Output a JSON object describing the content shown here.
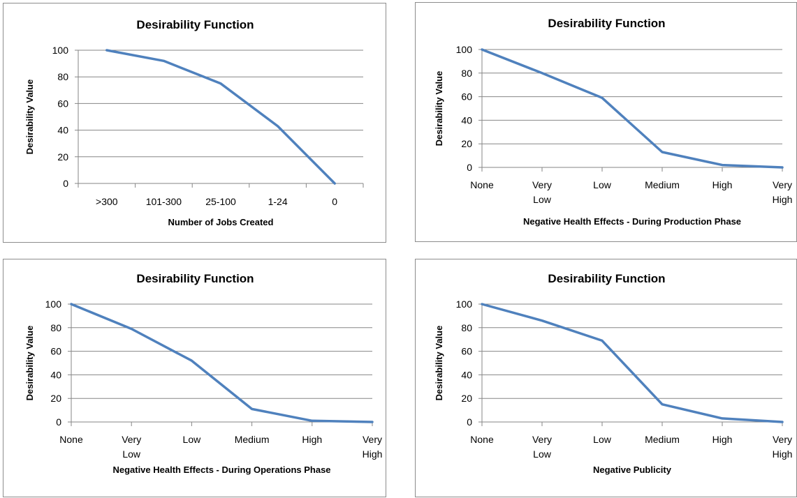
{
  "colors": {
    "series": "#4f81bd",
    "grid": "#868686"
  },
  "chart_data": [
    {
      "type": "line",
      "title": "Desirability Function",
      "xlabel": "Number of Jobs Created",
      "ylabel": "Desirability Value",
      "categories": [
        ">300",
        "101-300",
        "25-100",
        "1-24",
        "0"
      ],
      "x_positions": "between",
      "ylim": [
        0,
        100
      ],
      "yticks": [
        0,
        20,
        40,
        60,
        80,
        100
      ],
      "grid": true,
      "series": [
        {
          "values": [
            100,
            92,
            75,
            43,
            0
          ]
        }
      ]
    },
    {
      "type": "line",
      "title": "Desirability Function",
      "xlabel": "Negative Health Effects - During Production  Phase",
      "ylabel": "Desirability Value",
      "categories": [
        "None",
        "Very\nLow",
        "Low",
        "Medium",
        "High",
        "Very\nHigh"
      ],
      "x_positions": "on_tick",
      "ylim": [
        0,
        100
      ],
      "yticks": [
        0,
        20,
        40,
        60,
        80,
        100
      ],
      "grid": true,
      "series": [
        {
          "values": [
            100,
            80,
            59,
            13,
            2,
            0
          ]
        }
      ]
    },
    {
      "type": "line",
      "title": "Desirability Function",
      "xlabel": "Negative Health Effects - During Operations Phase",
      "ylabel": "Desirability Value",
      "categories": [
        "None",
        "Very\nLow",
        "Low",
        "Medium",
        "High",
        "Very\nHigh"
      ],
      "x_positions": "on_tick",
      "ylim": [
        0,
        100
      ],
      "yticks": [
        0,
        20,
        40,
        60,
        80,
        100
      ],
      "grid": true,
      "series": [
        {
          "values": [
            100,
            79,
            52,
            11,
            1,
            0
          ]
        }
      ]
    },
    {
      "type": "line",
      "title": "Desirability Function",
      "xlabel": "Negative Publicity",
      "ylabel": "Desirability Value",
      "categories": [
        "None",
        "Very\nLow",
        "Low",
        "Medium",
        "High",
        "Very\nHigh"
      ],
      "x_positions": "on_tick",
      "ylim": [
        0,
        100
      ],
      "yticks": [
        0,
        20,
        40,
        60,
        80,
        100
      ],
      "grid": true,
      "series": [
        {
          "values": [
            100,
            86,
            69,
            15,
            3,
            0
          ]
        }
      ]
    }
  ]
}
